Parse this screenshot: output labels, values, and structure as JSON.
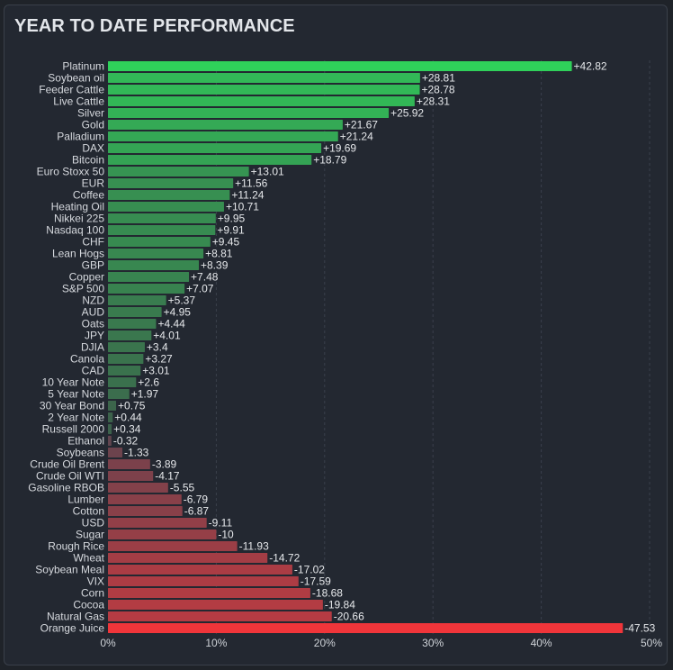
{
  "title": "YEAR TO DATE PERFORMANCE",
  "chart_data": {
    "type": "bar",
    "orientation": "horizontal",
    "title": "YEAR TO DATE PERFORMANCE",
    "xlim": [
      0,
      50
    ],
    "ticks": [
      0,
      10,
      20,
      30,
      40,
      50
    ],
    "tick_labels": [
      "0%",
      "10%",
      "20%",
      "30%",
      "40%",
      "50%"
    ],
    "grid": true,
    "categories": [
      "Platinum",
      "Soybean oil",
      "Feeder Cattle",
      "Live Cattle",
      "Silver",
      "Gold",
      "Palladium",
      "DAX",
      "Bitcoin",
      "Euro Stoxx 50",
      "EUR",
      "Coffee",
      "Heating Oil",
      "Nikkei 225",
      "Nasdaq 100",
      "CHF",
      "Lean Hogs",
      "GBP",
      "Copper",
      "S&P 500",
      "NZD",
      "AUD",
      "Oats",
      "JPY",
      "DJIA",
      "Canola",
      "CAD",
      "10 Year Note",
      "5 Year Note",
      "30 Year Bond",
      "2 Year Note",
      "Russell 2000",
      "Ethanol",
      "Soybeans",
      "Crude Oil Brent",
      "Crude Oil WTI",
      "Gasoline RBOB",
      "Lumber",
      "Cotton",
      "USD",
      "Sugar",
      "Rough Rice",
      "Wheat",
      "Soybean Meal",
      "VIX",
      "Corn",
      "Cocoa",
      "Natural Gas",
      "Orange Juice"
    ],
    "values": [
      42.82,
      28.81,
      28.78,
      28.31,
      25.92,
      21.67,
      21.24,
      19.69,
      18.79,
      13.01,
      11.56,
      11.24,
      10.71,
      9.95,
      9.91,
      9.45,
      8.81,
      8.39,
      7.48,
      7.07,
      5.37,
      4.95,
      4.44,
      4.01,
      3.4,
      3.27,
      3.01,
      2.6,
      1.97,
      0.75,
      0.44,
      0.34,
      -0.32,
      -1.33,
      -3.89,
      -4.17,
      -5.55,
      -6.79,
      -6.87,
      -9.11,
      -10,
      -11.93,
      -14.72,
      -17.02,
      -17.59,
      -18.68,
      -19.84,
      -20.66,
      -47.53
    ],
    "value_labels": [
      "+42.82",
      "+28.81",
      "+28.78",
      "+28.31",
      "+25.92",
      "+21.67",
      "+21.24",
      "+19.69",
      "+18.79",
      "+13.01",
      "+11.56",
      "+11.24",
      "+10.71",
      "+9.95",
      "+9.91",
      "+9.45",
      "+8.81",
      "+8.39",
      "+7.48",
      "+7.07",
      "+5.37",
      "+4.95",
      "+4.44",
      "+4.01",
      "+3.4",
      "+3.27",
      "+3.01",
      "+2.6",
      "+1.97",
      "+0.75",
      "+0.44",
      "+0.34",
      "-0.32",
      "-1.33",
      "-3.89",
      "-4.17",
      "-5.55",
      "-6.79",
      "-6.87",
      "-9.11",
      "-10",
      "-11.93",
      "-14.72",
      "-17.02",
      "-17.59",
      "-18.68",
      "-19.84",
      "-20.66",
      "-47.53"
    ],
    "colors": {
      "positive_strong": "#2fd15a",
      "positive_weak": "#3d5a4a",
      "negative_weak": "#5a4550",
      "negative_strong": "#f0353a",
      "grid": "#3a404c"
    }
  }
}
